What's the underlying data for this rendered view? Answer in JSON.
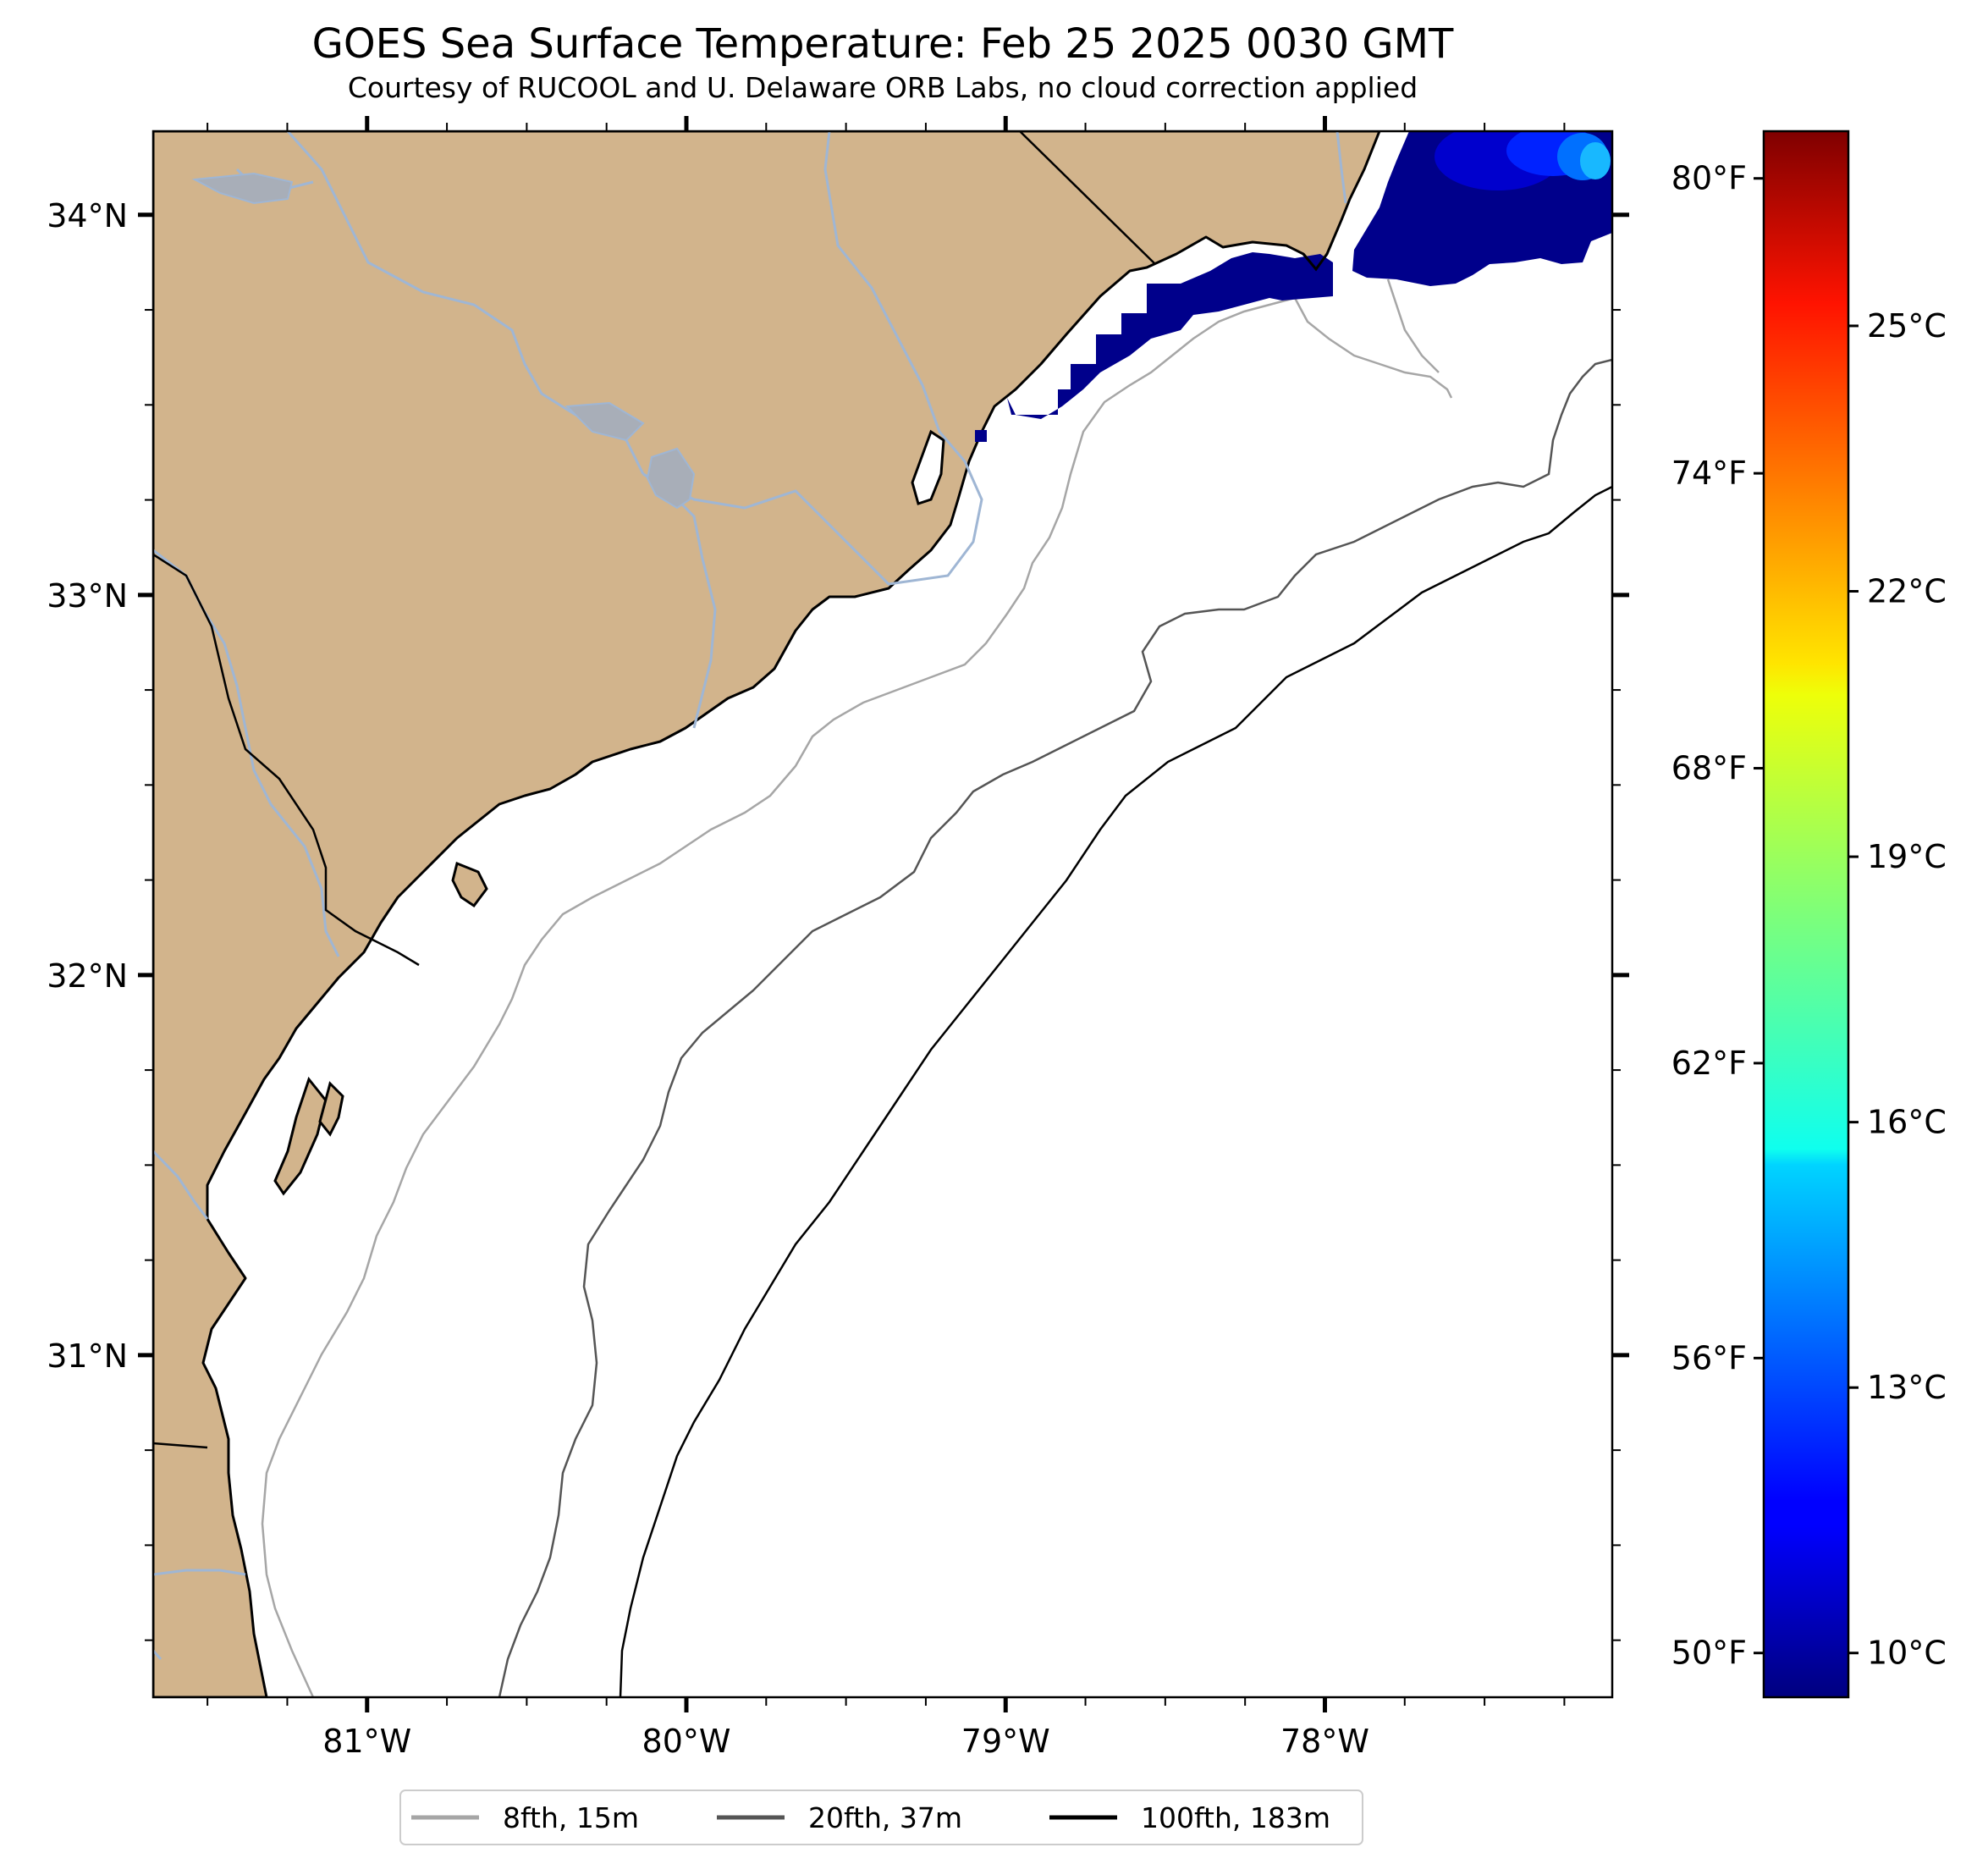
{
  "figure": {
    "title": "GOES Sea Surface Temperature: Feb 25 2025 0030 GMT",
    "subtitle": "Courtesy of RUCOOL and U. Delaware ORB Labs, no cloud correction applied"
  },
  "map": {
    "lat_range": [
      30.1,
      34.22
    ],
    "lon_range": [
      -81.67,
      -77.1
    ],
    "lat_ticks": [
      {
        "value": 34,
        "label": "34°N"
      },
      {
        "value": 33,
        "label": "33°N"
      },
      {
        "value": 32,
        "label": "32°N"
      },
      {
        "value": 31,
        "label": "31°N"
      }
    ],
    "lon_ticks": [
      {
        "value": -81,
        "label": "81°W"
      },
      {
        "value": -80,
        "label": "80°W"
      },
      {
        "value": -79,
        "label": "79°W"
      },
      {
        "value": -78,
        "label": "78°W"
      }
    ],
    "colors": {
      "land": "#d2b48c",
      "water": "#ffffff",
      "rivers": "#9fb6d4",
      "lakes": "#a8aeb8",
      "coastline": "#000000",
      "borders": "#000000",
      "sst_cold": "#00008b"
    }
  },
  "bathymetry_legend": [
    {
      "label": "8fth, 15m",
      "color": "#a6a6a6"
    },
    {
      "label": "20fth, 37m",
      "color": "#555555"
    },
    {
      "label": "100fth, 183m",
      "color": "#000000"
    }
  ],
  "colorbar": {
    "colormap": "jet",
    "celsius_range": [
      9.5,
      27.2
    ],
    "fahrenheit_labels": [
      {
        "value": 80,
        "label": "80°F"
      },
      {
        "value": 74,
        "label": "74°F"
      },
      {
        "value": 68,
        "label": "68°F"
      },
      {
        "value": 62,
        "label": "62°F"
      },
      {
        "value": 56,
        "label": "56°F"
      },
      {
        "value": 50,
        "label": "50°F"
      }
    ],
    "celsius_labels": [
      {
        "value": 25,
        "label": "25°C"
      },
      {
        "value": 22,
        "label": "22°C"
      },
      {
        "value": 19,
        "label": "19°C"
      },
      {
        "value": 16,
        "label": "16°C"
      },
      {
        "value": 13,
        "label": "13°C"
      },
      {
        "value": 10,
        "label": "10°C"
      }
    ]
  }
}
